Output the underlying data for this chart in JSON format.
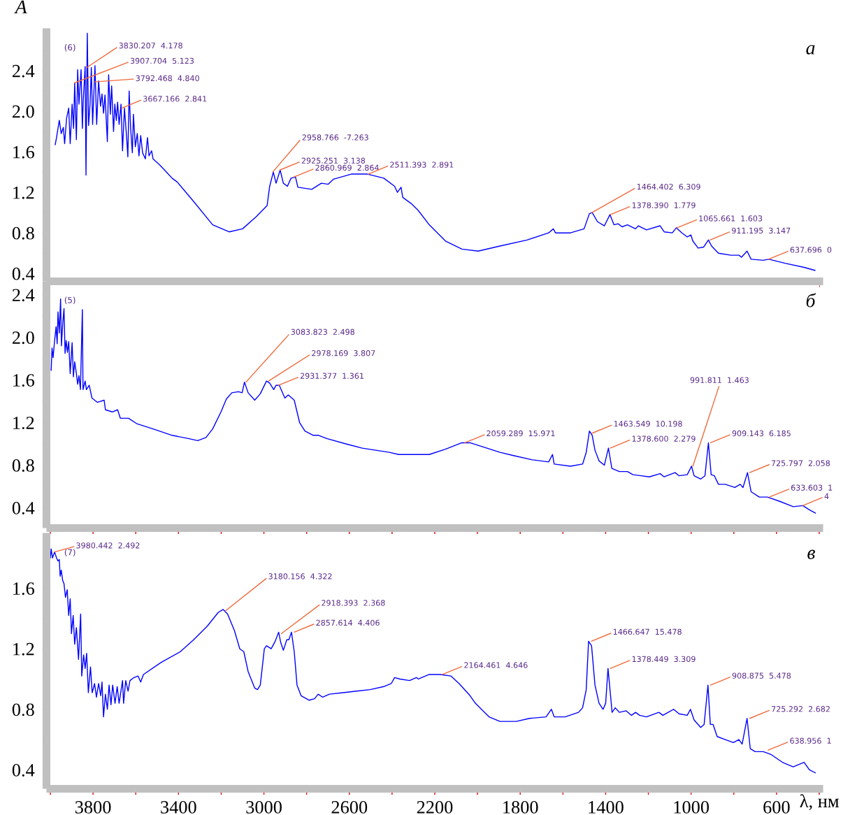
{
  "chart_data": [
    {
      "type": "line",
      "title": "а",
      "ylabel": "A",
      "tick_labels": "y",
      "xlim": [
        4000,
        400
      ],
      "ylim": [
        0.36,
        2.78
      ],
      "xticks": [
        {
          "value": 4000,
          "label": null
        },
        {
          "value": 3800,
          "label": null
        },
        {
          "value": 3600,
          "label": null
        },
        {
          "value": 3400,
          "label": null
        },
        {
          "value": 3200,
          "label": null
        },
        {
          "value": 3000,
          "label": null
        },
        {
          "value": 2800,
          "label": null
        },
        {
          "value": 2600,
          "label": null
        },
        {
          "value": 2400,
          "label": null
        },
        {
          "value": 2200,
          "label": null
        },
        {
          "value": 2000,
          "label": null
        },
        {
          "value": 1800,
          "label": null
        },
        {
          "value": 1600,
          "label": null
        },
        {
          "value": 1400,
          "label": null
        },
        {
          "value": 1200,
          "label": null
        },
        {
          "value": 1000,
          "label": null
        },
        {
          "value": 800,
          "label": null
        },
        {
          "value": 600,
          "label": null
        },
        {
          "value": 400,
          "label": null
        }
      ],
      "yticks": [
        0.4,
        {
          "value": 0.6,
          "label": null
        },
        0.8,
        {
          "value": 1.0,
          "label": null
        },
        1.2,
        {
          "value": 1.4,
          "label": null
        },
        1.6,
        {
          "value": 1.8,
          "label": null
        },
        {
          "value": 2.0,
          "label": "2.0"
        },
        {
          "value": 2.2,
          "label": null
        },
        2.4,
        {
          "value": 2.6,
          "label": null
        }
      ],
      "x": [
        3977,
        3971,
        3958,
        3949,
        3939,
        3933,
        3924,
        3914,
        3907,
        3898,
        3891,
        3886,
        3878,
        3872,
        3866,
        3856,
        3850,
        3846,
        3837,
        3833,
        3827,
        3821,
        3814,
        3808,
        3802,
        3791,
        3783,
        3774,
        3765,
        3758,
        3751,
        3744,
        3733,
        3727,
        3719,
        3713,
        3704,
        3698,
        3691,
        3685,
        3678,
        3669,
        3662,
        3653,
        3643,
        3637,
        3631,
        3624,
        3616,
        3611,
        3602,
        3593,
        3585,
        3577,
        3568,
        3555,
        3545,
        3538,
        3526,
        3519,
        3488,
        3456,
        3430,
        3405,
        3329,
        3240,
        3163,
        3100,
        3036,
        2985,
        2973,
        2956,
        2943,
        2924,
        2909,
        2890,
        2873,
        2852,
        2841,
        2776,
        2731,
        2699,
        2674,
        2591,
        2515,
        2439,
        2388,
        2375,
        2358,
        2350,
        2311,
        2277,
        2226,
        2150,
        2073,
        1997,
        1895,
        1768,
        1667,
        1645,
        1635,
        1565,
        1501,
        1476,
        1463,
        1438,
        1406,
        1380,
        1361,
        1342,
        1323,
        1298,
        1260,
        1247,
        1209,
        1145,
        1126,
        1088,
        1069,
        1043,
        1018,
        1001,
        992,
        967,
        941,
        919,
        904,
        872,
        814,
        776,
        764,
        738,
        719,
        662,
        636,
        560,
        471,
        420
      ],
      "series": [
        {
          "color": "#0000ff",
          "values": [
            1.67,
            1.74,
            1.91,
            1.78,
            1.84,
            1.68,
            1.93,
            2.03,
            1.68,
            2.07,
            1.83,
            2.28,
            1.72,
            2.41,
            2.07,
            2.41,
            1.83,
            2.1,
            2.44,
            1.37,
            2.77,
            1.86,
            2.07,
            2.43,
            1.87,
            2.45,
            1.87,
            2.3,
            2.05,
            2.17,
            1.98,
            2.16,
            1.7,
            2.36,
            1.97,
            2.25,
            1.8,
            2.07,
            1.91,
            2.09,
            1.87,
            2.07,
            1.61,
            2.03,
            1.75,
            1.55,
            2.2,
            1.83,
            1.59,
            1.97,
            1.65,
            1.78,
            1.56,
            1.76,
            1.59,
            1.53,
            1.74,
            1.56,
            1.61,
            1.53,
            1.47,
            1.4,
            1.34,
            1.3,
            1.11,
            0.88,
            0.81,
            0.84,
            0.96,
            1.07,
            1.26,
            1.4,
            1.29,
            1.42,
            1.29,
            1.26,
            1.34,
            1.35,
            1.25,
            1.23,
            1.29,
            1.28,
            1.33,
            1.38,
            1.38,
            1.34,
            1.26,
            1.2,
            1.25,
            1.15,
            1.09,
            1.02,
            0.88,
            0.72,
            0.64,
            0.62,
            0.67,
            0.73,
            0.8,
            0.84,
            0.8,
            0.8,
            0.84,
            0.99,
            1.0,
            0.91,
            0.87,
            0.98,
            0.88,
            0.89,
            0.86,
            0.88,
            0.84,
            0.87,
            0.83,
            0.87,
            0.81,
            0.8,
            0.85,
            0.8,
            0.76,
            0.78,
            0.72,
            0.65,
            0.66,
            0.73,
            0.67,
            0.6,
            0.58,
            0.58,
            0.56,
            0.62,
            0.54,
            0.53,
            0.54,
            0.5,
            0.46,
            0.43
          ]
        }
      ],
      "annotations": [
        "(6)",
        {
          "text": "3830.207  4.178",
          "x": 3830.207,
          "y": 2.43
        },
        {
          "text": "3907.704  5.123",
          "x": 3886,
          "y": 2.28
        },
        {
          "text": "3792.468  4.840",
          "x": 3792.468,
          "y": 2.29
        },
        {
          "text": "3667.166  2.841",
          "x": 3667.166,
          "y": 2.03
        },
        {
          "text": "2958.766  -7.263",
          "x": 2958.766,
          "y": 1.4
        },
        {
          "text": "2925.251  3.138",
          "x": 2925.251,
          "y": 1.42
        },
        {
          "text": "2860.969  2.864",
          "x": 2860.969,
          "y": 1.35
        },
        {
          "text": "2511.393  2.891",
          "x": 2511.393,
          "y": 1.38
        },
        {
          "text": "1464.402  6.309",
          "x": 1464.402,
          "y": 1.0
        },
        {
          "text": "1378.390  1.779",
          "x": 1378.39,
          "y": 0.98
        },
        {
          "text": "1065.661  1.603",
          "x": 1065.661,
          "y": 0.85
        },
        {
          "text": "911.195  3.147",
          "x": 911.195,
          "y": 0.73
        },
        {
          "text": "637.696  0",
          "x": 637.696,
          "y": 0.54
        }
      ]
    },
    {
      "type": "line",
      "title": "б",
      "tick_labels": "y",
      "xlim": [
        4000,
        400
      ],
      "ylim": [
        0.245,
        2.49
      ],
      "xticks": [
        {
          "value": 4000,
          "label": null
        },
        {
          "value": 3800,
          "label": null
        },
        {
          "value": 3600,
          "label": null
        },
        {
          "value": 3400,
          "label": null
        },
        {
          "value": 3200,
          "label": null
        },
        {
          "value": 3000,
          "label": null
        },
        {
          "value": 2800,
          "label": null
        },
        {
          "value": 2600,
          "label": null
        },
        {
          "value": 2400,
          "label": null
        },
        {
          "value": 2200,
          "label": null
        },
        {
          "value": 2000,
          "label": null
        },
        {
          "value": 1800,
          "label": null
        },
        {
          "value": 1600,
          "label": null
        },
        {
          "value": 1400,
          "label": null
        },
        {
          "value": 1200,
          "label": null
        },
        {
          "value": 1000,
          "label": null
        },
        {
          "value": 800,
          "label": null
        },
        {
          "value": 600,
          "label": null
        },
        {
          "value": 400,
          "label": null
        }
      ],
      "yticks": [
        0.4,
        {
          "value": 0.6,
          "label": null
        },
        0.8,
        {
          "value": 1.0,
          "label": null
        },
        1.2,
        {
          "value": 1.4,
          "label": null
        },
        1.6,
        {
          "value": 1.8,
          "label": null
        },
        {
          "value": 2.0,
          "label": "2.0"
        },
        {
          "value": 2.2,
          "label": null
        },
        2.4
      ],
      "x": [
        3996,
        3992,
        3987,
        3980,
        3973,
        3968,
        3964,
        3958,
        3952,
        3948,
        3942,
        3936,
        3931,
        3926,
        3920,
        3914,
        3907,
        3898,
        3892,
        3886,
        3878,
        3872,
        3866,
        3859,
        3850,
        3847,
        3837,
        3831,
        3818,
        3805,
        3780,
        3748,
        3742,
        3710,
        3685,
        3672,
        3634,
        3596,
        3519,
        3430,
        3354,
        3310,
        3271,
        3240,
        3201,
        3176,
        3150,
        3119,
        3102,
        3091,
        3074,
        3043,
        3017,
        2988,
        2973,
        2954,
        2943,
        2928,
        2902,
        2886,
        2858,
        2833,
        2808,
        2769,
        2744,
        2706,
        2617,
        2540,
        2413,
        2369,
        2305,
        2277,
        2226,
        2150,
        2073,
        2035,
        1895,
        1832,
        1743,
        1667,
        1649,
        1641,
        1565,
        1508,
        1491,
        1476,
        1463,
        1450,
        1431,
        1406,
        1387,
        1371,
        1336,
        1298,
        1272,
        1234,
        1196,
        1145,
        1126,
        1075,
        1056,
        1018,
        998,
        986,
        955,
        935,
        919,
        906,
        891,
        872,
        840,
        795,
        770,
        757,
        736,
        719,
        681,
        643,
        585,
        522,
        477,
        446,
        418
      ],
      "series": [
        {
          "color": "#0000ff",
          "values": [
            1.69,
            1.9,
            1.81,
            1.97,
            2.1,
            1.94,
            2.24,
            2.04,
            2.36,
            1.92,
            2.13,
            2.27,
            1.85,
            1.97,
            1.86,
            1.96,
            1.66,
            1.95,
            1.63,
            1.77,
            1.66,
            1.56,
            1.64,
            1.51,
            2.26,
            1.51,
            1.59,
            1.51,
            1.55,
            1.43,
            1.39,
            1.41,
            1.32,
            1.3,
            1.32,
            1.24,
            1.24,
            1.19,
            1.14,
            1.08,
            1.05,
            1.03,
            1.06,
            1.14,
            1.3,
            1.42,
            1.48,
            1.49,
            1.48,
            1.58,
            1.48,
            1.41,
            1.47,
            1.59,
            1.57,
            1.51,
            1.55,
            1.55,
            1.43,
            1.46,
            1.41,
            1.2,
            1.12,
            1.08,
            1.08,
            1.05,
            1.0,
            0.96,
            0.92,
            0.9,
            0.9,
            0.9,
            0.9,
            0.95,
            1.01,
            1.01,
            0.92,
            0.89,
            0.85,
            0.83,
            0.9,
            0.81,
            0.79,
            0.81,
            0.92,
            1.12,
            1.08,
            0.94,
            0.84,
            0.8,
            0.96,
            0.77,
            0.74,
            0.74,
            0.71,
            0.7,
            0.69,
            0.72,
            0.69,
            0.73,
            0.7,
            0.71,
            0.79,
            0.7,
            0.67,
            0.7,
            1.01,
            0.71,
            0.7,
            0.62,
            0.62,
            0.59,
            0.62,
            0.59,
            0.73,
            0.55,
            0.5,
            0.5,
            0.46,
            0.41,
            0.42,
            0.38,
            0.35
          ]
        }
      ],
      "annotations": [
        "(5)",
        {
          "text": "3083.823  2.498",
          "x": 3083.823,
          "y": 1.58
        },
        {
          "text": "2978.169  3.807",
          "x": 2978.169,
          "y": 1.59
        },
        {
          "text": "2931.377  1.361",
          "x": 2931.377,
          "y": 1.55
        },
        {
          "text": "2059.289  15.971",
          "x": 2059.289,
          "y": 1.01
        },
        {
          "text": "1463.549  10.198",
          "x": 1463.549,
          "y": 1.1
        },
        {
          "text": "1378.600  2.279",
          "x": 1378.6,
          "y": 0.96
        },
        {
          "text": "991.811  1.463",
          "x": 991.811,
          "y": 0.79
        },
        {
          "text": "909.143  6.185",
          "x": 909.143,
          "y": 1.01
        },
        {
          "text": "725.797  2.058",
          "x": 725.797,
          "y": 0.73
        },
        {
          "text": "633.603  1",
          "x": 633.603,
          "y": 0.5
        },
        {
          "text": "4",
          "x": 477,
          "y": 0.42
        }
      ]
    },
    {
      "type": "line",
      "title": "в",
      "xlabel": "λ, нм",
      "xlim": [
        4000,
        400
      ],
      "ylim": [
        0.3,
        1.94
      ],
      "xticks": [
        {
          "value": 4000,
          "label": null
        },
        3800,
        {
          "value": 3600,
          "label": null
        },
        3400,
        {
          "value": 3200,
          "label": null
        },
        3000,
        {
          "value": 2800,
          "label": null
        },
        2600,
        {
          "value": 2400,
          "label": null
        },
        2200,
        {
          "value": 2000,
          "label": null
        },
        1800,
        {
          "value": 1600,
          "label": null
        },
        1400,
        {
          "value": 1200,
          "label": null
        },
        1000,
        {
          "value": 800,
          "label": null
        },
        600,
        {
          "value": 400,
          "label": null
        }
      ],
      "yticks": [
        0.4,
        {
          "value": 0.6,
          "label": null
        },
        0.8,
        {
          "value": 1.0,
          "label": null
        },
        1.2,
        {
          "value": 1.4,
          "label": null
        },
        1.6,
        {
          "value": 1.8,
          "label": null
        }
      ],
      "x": [
        4000,
        3996,
        3990,
        3980,
        3971,
        3964,
        3958,
        3954,
        3949,
        3942,
        3936,
        3929,
        3921,
        3914,
        3907,
        3901,
        3893,
        3886,
        3878,
        3868,
        3858,
        3853,
        3844,
        3837,
        3830,
        3822,
        3812,
        3804,
        3793,
        3784,
        3774,
        3764,
        3758,
        3751,
        3742,
        3733,
        3725,
        3716,
        3708,
        3697,
        3687,
        3678,
        3662,
        3657,
        3647,
        3636,
        3627,
        3608,
        3589,
        3577,
        3564,
        3481,
        3392,
        3329,
        3265,
        3214,
        3191,
        3170,
        3138,
        3113,
        3094,
        3074,
        3043,
        3030,
        3017,
        2998,
        2988,
        2966,
        2947,
        2931,
        2921,
        2909,
        2893,
        2883,
        2871,
        2858,
        2845,
        2826,
        2788,
        2763,
        2746,
        2725,
        2693,
        2630,
        2566,
        2503,
        2439,
        2404,
        2388,
        2363,
        2318,
        2286,
        2277,
        2226,
        2175,
        2124,
        2086,
        2035,
        2010,
        1946,
        1895,
        1819,
        1756,
        1679,
        1654,
        1641,
        1590,
        1527,
        1508,
        1491,
        1480,
        1466,
        1450,
        1431,
        1412,
        1400,
        1389,
        1377,
        1370,
        1355,
        1336,
        1304,
        1279,
        1260,
        1241,
        1209,
        1151,
        1132,
        1082,
        1056,
        1018,
        1003,
        986,
        955,
        939,
        921,
        910,
        897,
        878,
        840,
        802,
        776,
        761,
        738,
        723,
        700,
        662,
        624,
        573,
        522,
        471,
        446,
        418
      ],
      "series": [
        {
          "color": "#0000ff",
          "values": [
            1.8,
            1.86,
            1.8,
            1.84,
            1.8,
            1.78,
            1.79,
            1.68,
            1.72,
            1.65,
            1.63,
            1.54,
            1.59,
            1.42,
            1.53,
            1.3,
            1.42,
            1.23,
            1.34,
            1.13,
            1.43,
            1.02,
            1.16,
            1.07,
            1.17,
            0.91,
            1.08,
            0.91,
            0.97,
            0.88,
            0.97,
            0.89,
            0.98,
            0.75,
            0.9,
            0.8,
            0.96,
            0.83,
            0.96,
            0.84,
            0.95,
            0.84,
            0.99,
            0.84,
            0.99,
            0.92,
            0.99,
            1.01,
            1.02,
            0.98,
            1.03,
            1.11,
            1.18,
            1.26,
            1.35,
            1.44,
            1.46,
            1.43,
            1.32,
            1.2,
            1.18,
            1.05,
            0.94,
            0.93,
            0.96,
            1.2,
            1.22,
            1.2,
            1.25,
            1.31,
            1.24,
            1.19,
            1.26,
            1.26,
            1.31,
            1.18,
            0.96,
            0.89,
            0.86,
            0.87,
            0.9,
            0.88,
            0.9,
            0.91,
            0.92,
            0.93,
            0.95,
            0.97,
            1.01,
            1.0,
            0.99,
            1.01,
            1.0,
            1.03,
            1.03,
            1.02,
            0.97,
            0.89,
            0.84,
            0.75,
            0.72,
            0.72,
            0.74,
            0.75,
            0.8,
            0.75,
            0.75,
            0.78,
            0.81,
            0.93,
            1.25,
            1.22,
            0.96,
            0.84,
            0.8,
            0.84,
            1.07,
            0.89,
            0.78,
            0.81,
            0.78,
            0.79,
            0.76,
            0.78,
            0.76,
            0.75,
            0.78,
            0.76,
            0.8,
            0.77,
            0.76,
            0.8,
            0.73,
            0.68,
            0.7,
            0.96,
            0.7,
            0.7,
            0.62,
            0.6,
            0.58,
            0.6,
            0.57,
            0.74,
            0.54,
            0.52,
            0.52,
            0.5,
            0.45,
            0.42,
            0.45,
            0.4,
            0.38
          ]
        }
      ],
      "annotations": [
        "(7)",
        {
          "text": "3980.442  2.492",
          "x": 3980.442,
          "y": 1.84
        },
        {
          "text": "3180.156  4.322",
          "x": 3180.156,
          "y": 1.45
        },
        {
          "text": "2918.393  2.368",
          "x": 2918.393,
          "y": 1.3
        },
        {
          "text": "2857.614  4.406",
          "x": 2857.614,
          "y": 1.31
        },
        {
          "text": "2164.461  4.646",
          "x": 2164.461,
          "y": 1.03
        },
        {
          "text": "1466.647  15.478",
          "x": 1466.647,
          "y": 1.25
        },
        {
          "text": "1378.449  3.309",
          "x": 1378.449,
          "y": 1.07
        },
        {
          "text": "908.875  5.478",
          "x": 908.875,
          "y": 0.96
        },
        {
          "text": "725.292  2.682",
          "x": 725.292,
          "y": 0.74
        },
        {
          "text": "638.956  1",
          "x": 638.956,
          "y": 0.53
        }
      ]
    }
  ]
}
